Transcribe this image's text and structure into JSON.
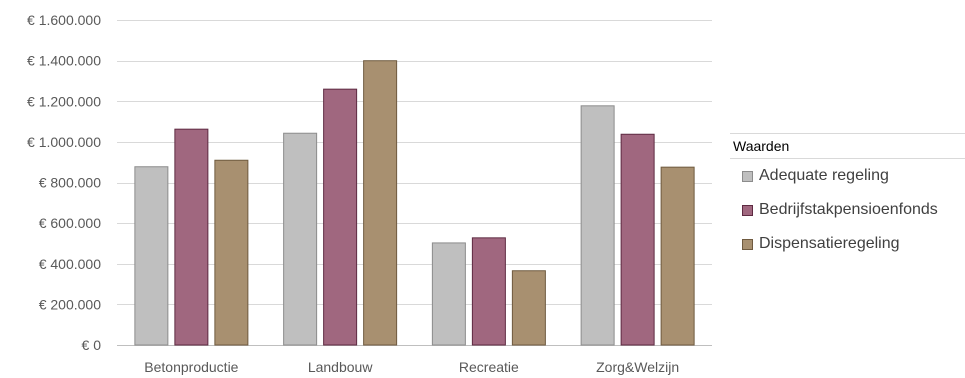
{
  "chart_data": {
    "type": "bar",
    "title": "",
    "xlabel": "",
    "ylabel": "",
    "categories": [
      "Betonproductie",
      "Landbouw",
      "Recreatie",
      "Zorg&Welzijn"
    ],
    "series": [
      {
        "name": "Adequate regeling",
        "color": "#bfbfbf",
        "stroke": "#8c8c8c",
        "values": [
          880000,
          1045000,
          505000,
          1180000
        ]
      },
      {
        "name": "Bedrijfstakpensioenfonds",
        "color": "#a0677f",
        "stroke": "#5e2a42",
        "values": [
          1065000,
          1262000,
          530000,
          1040000
        ]
      },
      {
        "name": "Dispensatieregeling",
        "color": "#a89070",
        "stroke": "#6f5a3f",
        "values": [
          912000,
          1402000,
          368000,
          878000
        ]
      }
    ],
    "ylim": [
      0,
      1600000
    ],
    "ytick_labels": [
      "€ 0",
      "€ 200.000",
      "€ 400.000",
      "€ 600.000",
      "€ 800.000",
      "€ 1.000.000",
      "€ 1.200.000",
      "€ 1.400.000",
      "€ 1.600.000"
    ],
    "grid": true,
    "legend": {
      "title": "Waarden",
      "position": "right"
    }
  }
}
